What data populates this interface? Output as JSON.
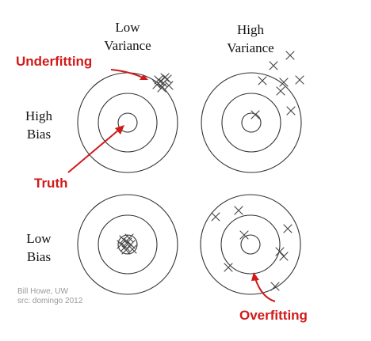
{
  "columns": {
    "low_variance": [
      "Low",
      "Variance"
    ],
    "high_variance": [
      "High",
      "Variance"
    ]
  },
  "rows": {
    "high_bias": [
      "High",
      "Bias"
    ],
    "low_bias": [
      "Low",
      "Bias"
    ]
  },
  "annotations": {
    "underfitting": "Underfitting",
    "truth": "Truth",
    "overfitting": "Overfitting"
  },
  "credits": {
    "author": "Bill Howe, UW",
    "source": "src: domingo 2012"
  },
  "colors": {
    "annotation": "#d11a1a",
    "ink": "#333333",
    "credit": "#9a9a9a"
  }
}
